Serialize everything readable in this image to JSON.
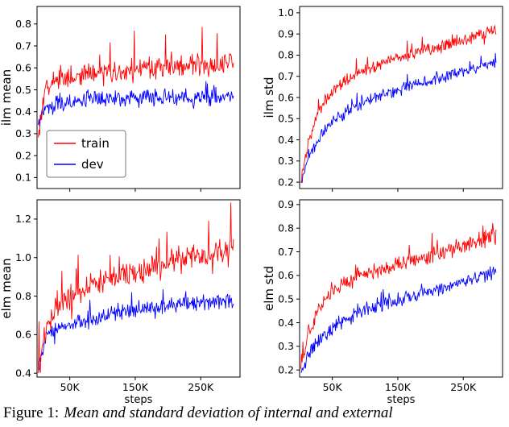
{
  "caption": {
    "prefix": "Figure 1:",
    "text": "Mean and standard deviation of internal and external"
  },
  "chart_data": [
    {
      "type": "line",
      "ylabel": "ilm mean",
      "xlabel": "",
      "show_xtick_labels": false,
      "legend": true,
      "xlim": [
        0,
        310000
      ],
      "ylim": [
        0.05,
        0.88
      ],
      "x_range": [
        2000,
        300000
      ],
      "xticks": [
        50000,
        150000,
        250000
      ],
      "xtick_labels": [
        "50K",
        "150K",
        "250K"
      ],
      "yticks": [
        0.1,
        0.2,
        0.3,
        0.4,
        0.5,
        0.6,
        0.7,
        0.8
      ],
      "ytick_labels": [
        "0.1",
        "0.2",
        "0.3",
        "0.4",
        "0.5",
        "0.6",
        "0.7",
        "0.8"
      ],
      "series": [
        {
          "name": "train",
          "color": "#ff0000",
          "seed": 101,
          "noise": 0.04,
          "spike": 0.2,
          "spike_p": 0.07,
          "trend": [
            [
              0,
              0.29
            ],
            [
              0.03,
              0.5
            ],
            [
              0.1,
              0.55
            ],
            [
              0.3,
              0.58
            ],
            [
              0.6,
              0.6
            ],
            [
              1,
              0.62
            ]
          ]
        },
        {
          "name": "dev",
          "color": "#0000ff",
          "seed": 102,
          "noise": 0.028,
          "spike": 0.08,
          "spike_p": 0.05,
          "trend": [
            [
              0,
              0.33
            ],
            [
              0.03,
              0.41
            ],
            [
              0.1,
              0.44
            ],
            [
              0.3,
              0.46
            ],
            [
              0.6,
              0.47
            ],
            [
              1,
              0.46
            ]
          ]
        }
      ]
    },
    {
      "type": "line",
      "ylabel": "ilm std",
      "xlabel": "",
      "show_xtick_labels": false,
      "legend": false,
      "xlim": [
        0,
        310000
      ],
      "ylim": [
        0.17,
        1.03
      ],
      "x_range": [
        2000,
        300000
      ],
      "xticks": [
        50000,
        150000,
        250000
      ],
      "xtick_labels": [
        "50K",
        "150K",
        "250K"
      ],
      "yticks": [
        0.2,
        0.3,
        0.4,
        0.5,
        0.6,
        0.7,
        0.8,
        0.9,
        1.0
      ],
      "ytick_labels": [
        "0.2",
        "0.3",
        "0.4",
        "0.5",
        "0.6",
        "0.7",
        "0.8",
        "0.9",
        "1.0"
      ],
      "series": [
        {
          "name": "train",
          "color": "#ff0000",
          "seed": 201,
          "noise": 0.022,
          "spike": 0.07,
          "spike_p": 0.06,
          "trend": [
            [
              0,
              0.21
            ],
            [
              0.04,
              0.4
            ],
            [
              0.1,
              0.55
            ],
            [
              0.18,
              0.65
            ],
            [
              0.3,
              0.72
            ],
            [
              0.5,
              0.79
            ],
            [
              0.75,
              0.85
            ],
            [
              1,
              0.92
            ]
          ]
        },
        {
          "name": "dev",
          "color": "#0000ff",
          "seed": 202,
          "noise": 0.02,
          "spike": 0.05,
          "spike_p": 0.05,
          "trend": [
            [
              0,
              0.2
            ],
            [
              0.04,
              0.31
            ],
            [
              0.1,
              0.42
            ],
            [
              0.18,
              0.5
            ],
            [
              0.3,
              0.57
            ],
            [
              0.5,
              0.64
            ],
            [
              0.75,
              0.7
            ],
            [
              1,
              0.77
            ]
          ]
        }
      ]
    },
    {
      "type": "line",
      "ylabel": "elm mean",
      "xlabel": "steps",
      "show_xtick_labels": true,
      "legend": false,
      "xlim": [
        0,
        310000
      ],
      "ylim": [
        0.38,
        1.3
      ],
      "x_range": [
        2000,
        300000
      ],
      "xticks": [
        50000,
        150000,
        250000
      ],
      "xtick_labels": [
        "50K",
        "150K",
        "250K"
      ],
      "yticks": [
        0.4,
        0.6,
        0.8,
        1.0,
        1.2
      ],
      "ytick_labels": [
        "0.4",
        "0.6",
        "0.8",
        "1.0",
        "1.2"
      ],
      "series": [
        {
          "name": "train",
          "color": "#ff0000",
          "seed": 301,
          "noise": 0.05,
          "spike": 0.22,
          "spike_p": 0.07,
          "trend": [
            [
              0,
              0.42
            ],
            [
              0.04,
              0.64
            ],
            [
              0.1,
              0.76
            ],
            [
              0.2,
              0.82
            ],
            [
              0.35,
              0.88
            ],
            [
              0.55,
              0.94
            ],
            [
              0.75,
              1.0
            ],
            [
              1,
              1.05
            ]
          ]
        },
        {
          "name": "dev",
          "color": "#0000ff",
          "seed": 302,
          "noise": 0.032,
          "spike": 0.09,
          "spike_p": 0.05,
          "trend": [
            [
              0,
              0.42
            ],
            [
              0.04,
              0.58
            ],
            [
              0.1,
              0.63
            ],
            [
              0.25,
              0.68
            ],
            [
              0.45,
              0.72
            ],
            [
              0.7,
              0.76
            ],
            [
              1,
              0.78
            ]
          ]
        }
      ]
    },
    {
      "type": "line",
      "ylabel": "elm std",
      "xlabel": "steps",
      "show_xtick_labels": true,
      "legend": false,
      "xlim": [
        0,
        310000
      ],
      "ylim": [
        0.17,
        0.92
      ],
      "x_range": [
        2000,
        300000
      ],
      "xticks": [
        50000,
        150000,
        250000
      ],
      "xtick_labels": [
        "50K",
        "150K",
        "250K"
      ],
      "yticks": [
        0.2,
        0.3,
        0.4,
        0.5,
        0.6,
        0.7,
        0.8,
        0.9
      ],
      "ytick_labels": [
        "0.2",
        "0.3",
        "0.4",
        "0.5",
        "0.6",
        "0.7",
        "0.8",
        "0.9"
      ],
      "series": [
        {
          "name": "train",
          "color": "#ff0000",
          "seed": 401,
          "noise": 0.026,
          "spike": 0.07,
          "spike_p": 0.06,
          "trend": [
            [
              0,
              0.2
            ],
            [
              0.04,
              0.36
            ],
            [
              0.1,
              0.47
            ],
            [
              0.18,
              0.54
            ],
            [
              0.3,
              0.6
            ],
            [
              0.5,
              0.65
            ],
            [
              0.75,
              0.7
            ],
            [
              1,
              0.77
            ]
          ]
        },
        {
          "name": "dev",
          "color": "#0000ff",
          "seed": 402,
          "noise": 0.024,
          "spike": 0.06,
          "spike_p": 0.05,
          "trend": [
            [
              0,
              0.18
            ],
            [
              0.04,
              0.27
            ],
            [
              0.1,
              0.33
            ],
            [
              0.18,
              0.39
            ],
            [
              0.3,
              0.45
            ],
            [
              0.5,
              0.5
            ],
            [
              0.75,
              0.55
            ],
            [
              1,
              0.62
            ]
          ]
        }
      ]
    }
  ]
}
